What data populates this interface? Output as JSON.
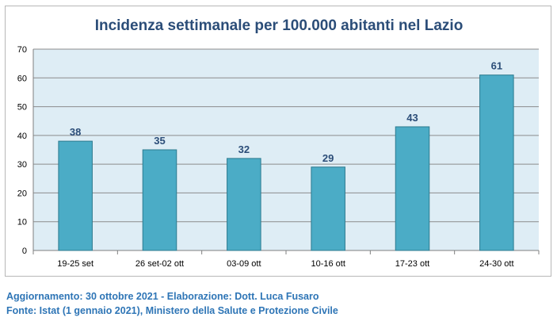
{
  "chart_data": {
    "type": "bar",
    "title": "Incidenza settimanale per 100.000 abitanti nel Lazio",
    "xlabel": "",
    "ylabel": "",
    "categories": [
      "19-25 set",
      "26 set-02 ott",
      "03-09 ott",
      "10-16 ott",
      "17-23 ott",
      "24-30 ott"
    ],
    "values": [
      38,
      35,
      32,
      29,
      43,
      61
    ],
    "data_labels": [
      "38",
      "35",
      "32",
      "29",
      "43",
      "61"
    ],
    "ylim": [
      0,
      70
    ],
    "yticks": [
      0,
      10,
      20,
      30,
      40,
      50,
      60,
      70
    ],
    "grid": true,
    "legend": "none",
    "colors": {
      "bar_fill": "#4bacc6",
      "bar_stroke": "#2c7a8f",
      "plot_background": "#deedf5",
      "gridline": "#8c8c8c",
      "title": "#2b4d78",
      "data_label": "#2b4d78"
    }
  },
  "footer": {
    "line1": "Aggiornamento: 30 ottobre 2021 - Elaborazione: Dott. Luca Fusaro",
    "line2": "Fonte: Istat (1 gennaio 2021), Ministero della Salute e Protezione Civile"
  }
}
